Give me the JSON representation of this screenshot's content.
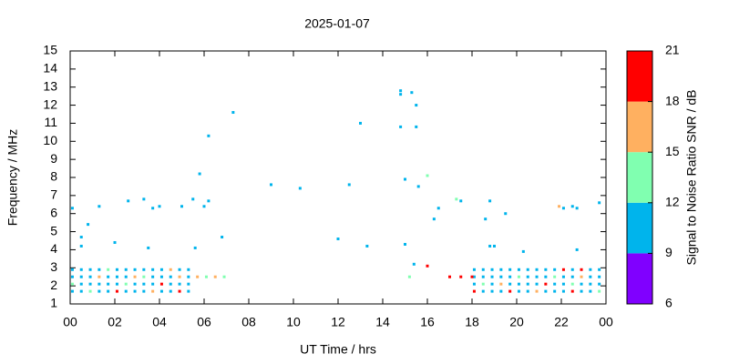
{
  "chart_data": {
    "type": "scatter",
    "title": "2025-01-07",
    "xlabel": "UT Time / hrs",
    "ylabel": "Frequency / MHz",
    "xlim": [
      0,
      24
    ],
    "xticks": [
      {
        "value": 0,
        "label": "00"
      },
      {
        "value": 2,
        "label": "02"
      },
      {
        "value": 4,
        "label": "04"
      },
      {
        "value": 6,
        "label": "06"
      },
      {
        "value": 8,
        "label": "08"
      },
      10,
      12,
      14,
      16,
      18,
      20,
      22,
      {
        "value": 24,
        "label": "00"
      }
    ],
    "ylim": [
      1,
      15
    ],
    "yticks": [
      1,
      2,
      3,
      4,
      5,
      6,
      7,
      8,
      9,
      10,
      11,
      12,
      13,
      14,
      15
    ],
    "colorbar": {
      "label": "Signal to Noise Ratio SNR / dB",
      "lim": [
        6,
        21
      ],
      "ticks": [
        6,
        9,
        12,
        15,
        18,
        21
      ],
      "colors": [
        "#8000ff",
        "#00b4ec",
        "#80ffb0",
        "#ffb060",
        "#ff0000"
      ]
    },
    "x": [
      0.1,
      0.1,
      0.1,
      0.1,
      0.5,
      0.5,
      0.5,
      0.5,
      0.9,
      0.9,
      0.9,
      0.9,
      1.3,
      1.3,
      1.3,
      1.3,
      1.7,
      1.7,
      1.7,
      1.7,
      2.1,
      2.1,
      2.1,
      2.1,
      2.5,
      2.5,
      2.5,
      2.5,
      2.9,
      2.9,
      2.9,
      2.9,
      3.3,
      3.3,
      3.3,
      3.3,
      3.7,
      3.7,
      3.7,
      3.7,
      4.1,
      4.1,
      4.1,
      4.1,
      4.5,
      4.5,
      4.5,
      4.5,
      4.9,
      4.9,
      4.9,
      4.9,
      5.3,
      5.3,
      5.3,
      5.3,
      5.7,
      6.1,
      6.5,
      6.9,
      18.1,
      18.1,
      18.1,
      18.1,
      18.5,
      18.5,
      18.5,
      18.5,
      18.9,
      18.9,
      18.9,
      18.9,
      19.3,
      19.3,
      19.3,
      19.3,
      19.7,
      19.7,
      19.7,
      19.7,
      20.1,
      20.1,
      20.1,
      20.1,
      20.5,
      20.5,
      20.5,
      20.5,
      20.9,
      20.9,
      20.9,
      20.9,
      21.3,
      21.3,
      21.3,
      21.3,
      21.7,
      21.7,
      21.7,
      21.7,
      22.1,
      22.1,
      22.1,
      22.1,
      22.5,
      22.5,
      22.5,
      22.5,
      22.9,
      22.9,
      22.9,
      22.9,
      23.3,
      23.3,
      23.3,
      23.3,
      23.7,
      23.7,
      23.7,
      23.7,
      0.1,
      0.5,
      0.5,
      0.8,
      1.3,
      2.0,
      2.6,
      3.3,
      3.5,
      3.7,
      4.0,
      5.0,
      5.5,
      5.6,
      5.8,
      6.0,
      6.2,
      6.2,
      6.8,
      7.3,
      9.0,
      10.3,
      12.0,
      12.5,
      13.0,
      13.3,
      14.8,
      14.8,
      14.8,
      15.0,
      15.0,
      15.3,
      15.5,
      15.5,
      15.6,
      16.0,
      15.2,
      15.4,
      16.0,
      16.3,
      16.5,
      17.0,
      17.3,
      17.5,
      17.5,
      18.6,
      18.8,
      18.8,
      19.0,
      19.5,
      20.3,
      21.9,
      22.1,
      22.5,
      22.7,
      22.7,
      23.7,
      18.0
    ],
    "values": [
      1.7,
      2.1,
      2.5,
      2.9,
      1.7,
      2.1,
      2.5,
      2.9,
      1.7,
      2.1,
      2.5,
      2.9,
      1.7,
      2.1,
      2.5,
      2.9,
      1.7,
      2.1,
      2.5,
      2.9,
      1.7,
      2.1,
      2.5,
      2.9,
      1.7,
      2.1,
      2.5,
      2.9,
      1.7,
      2.1,
      2.5,
      2.9,
      1.7,
      2.1,
      2.5,
      2.9,
      1.7,
      2.1,
      2.5,
      2.9,
      1.7,
      2.1,
      2.5,
      2.9,
      1.7,
      2.1,
      2.5,
      2.9,
      1.7,
      2.1,
      2.5,
      2.9,
      1.7,
      2.1,
      2.5,
      2.9,
      2.5,
      2.5,
      2.5,
      2.5,
      1.7,
      2.1,
      2.5,
      2.9,
      1.7,
      2.1,
      2.5,
      2.9,
      1.7,
      2.1,
      2.5,
      2.9,
      1.7,
      2.1,
      2.5,
      2.9,
      1.7,
      2.1,
      2.5,
      2.9,
      1.7,
      2.1,
      2.5,
      2.9,
      1.7,
      2.1,
      2.5,
      2.9,
      1.7,
      2.1,
      2.5,
      2.9,
      1.7,
      2.1,
      2.5,
      2.9,
      1.7,
      2.1,
      2.5,
      2.9,
      1.7,
      2.1,
      2.5,
      2.9,
      1.7,
      2.1,
      2.5,
      2.9,
      1.7,
      2.1,
      2.5,
      2.9,
      1.7,
      2.1,
      2.5,
      2.9,
      1.7,
      2.1,
      2.5,
      2.9,
      6.3,
      4.7,
      4.2,
      5.4,
      6.4,
      4.4,
      6.7,
      6.8,
      4.1,
      6.3,
      6.4,
      6.4,
      6.8,
      4.1,
      8.2,
      6.4,
      10.3,
      6.7,
      4.7,
      11.6,
      7.6,
      7.4,
      4.6,
      7.6,
      11.0,
      4.2,
      12.8,
      12.6,
      10.8,
      7.9,
      4.3,
      12.7,
      12.0,
      10.8,
      7.5,
      8.1,
      2.5,
      3.2,
      3.1,
      5.7,
      6.3,
      2.5,
      6.8,
      6.7,
      2.5,
      5.7,
      6.7,
      4.2,
      4.2,
      6.0,
      3.9,
      6.4,
      6.3,
      6.4,
      6.3,
      4.0,
      6.6,
      2.5
    ],
    "snr": [
      10,
      13,
      10,
      10,
      10,
      10,
      10,
      10,
      13,
      10,
      10,
      10,
      10,
      10,
      16,
      10,
      10,
      10,
      10,
      13,
      19,
      10,
      10,
      10,
      10,
      13,
      10,
      10,
      10,
      10,
      16,
      10,
      10,
      10,
      13,
      10,
      16,
      10,
      10,
      10,
      10,
      19,
      10,
      10,
      10,
      10,
      10,
      16,
      19,
      10,
      16,
      10,
      10,
      10,
      10,
      10,
      16,
      13,
      16,
      13,
      19,
      10,
      10,
      10,
      10,
      13,
      10,
      10,
      10,
      10,
      10,
      10,
      10,
      16,
      10,
      10,
      19,
      10,
      10,
      10,
      10,
      10,
      13,
      10,
      10,
      10,
      10,
      10,
      16,
      10,
      10,
      10,
      10,
      19,
      10,
      10,
      10,
      10,
      13,
      10,
      10,
      10,
      10,
      19,
      19,
      13,
      10,
      10,
      10,
      10,
      16,
      19,
      10,
      10,
      10,
      10,
      13,
      10,
      10,
      10,
      10,
      10,
      10,
      10,
      10,
      10,
      10,
      10,
      10,
      10,
      10,
      10,
      10,
      10,
      10,
      10,
      10,
      10,
      10,
      10,
      10,
      10,
      10,
      10,
      10,
      10,
      10,
      10,
      10,
      10,
      10,
      10,
      10,
      10,
      10,
      13,
      13,
      10,
      19,
      10,
      10,
      19,
      13,
      10,
      19,
      10,
      10,
      10,
      10,
      10,
      10,
      16,
      10,
      10,
      10,
      10,
      10,
      19
    ]
  }
}
